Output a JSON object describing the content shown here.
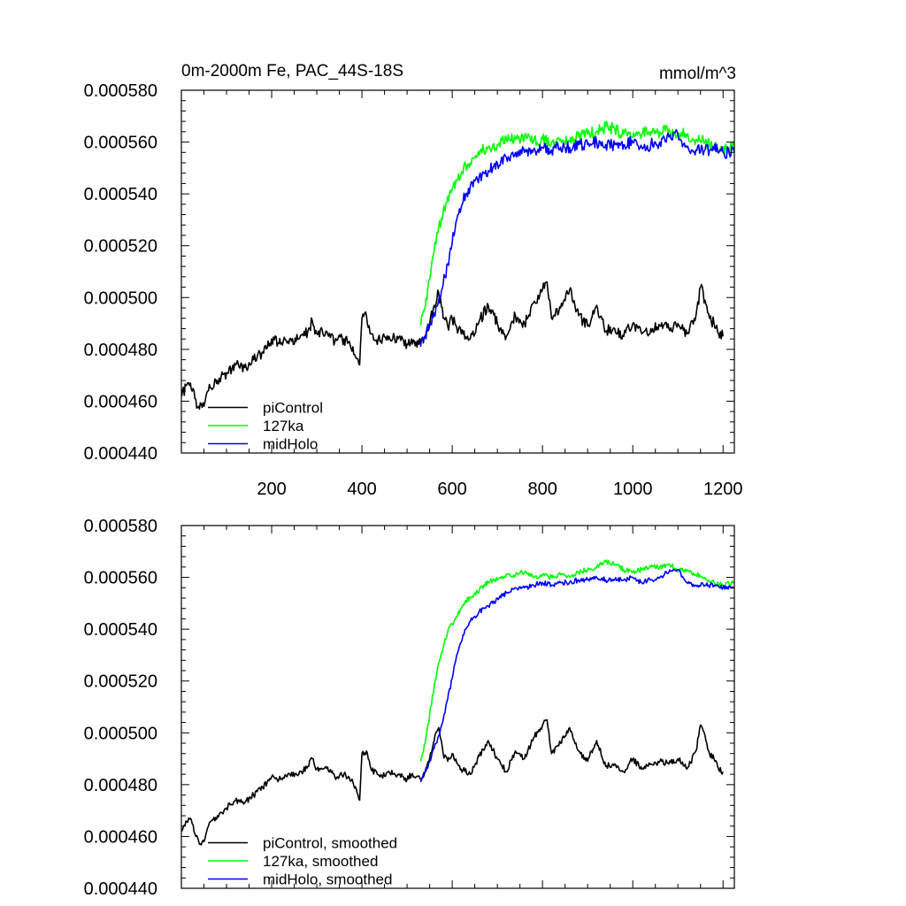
{
  "chart_data": [
    {
      "type": "line",
      "title": "0m-2000m Fe, PAC_44S-18S",
      "units": "mmol/m^3",
      "xlim": [
        0,
        1225
      ],
      "ylim": [
        0.00044,
        0.00058
      ],
      "yticks": [
        0.00044,
        0.00046,
        0.00048,
        0.0005,
        0.00052,
        0.00054,
        0.00056,
        0.00058
      ],
      "ytick_labels": [
        "0.000440",
        "0.000460",
        "0.000480",
        "0.000500",
        "0.000520",
        "0.000540",
        "0.000560",
        "0.000580"
      ],
      "xticks": [
        200,
        400,
        600,
        800,
        1000,
        1200
      ],
      "xtick_labels": [
        "200",
        "400",
        "600",
        "800",
        "1000",
        "1200"
      ],
      "legend_position": "bottom-left",
      "noise": [
        2.2e-06,
        2.4e-06,
        2.4e-06
      ],
      "series": [
        {
          "name": "piControl",
          "color": "#000000",
          "x": [
            1,
            10,
            20,
            30,
            40,
            50,
            60,
            80,
            100,
            120,
            140,
            160,
            180,
            200,
            220,
            240,
            260,
            280,
            290,
            300,
            320,
            340,
            360,
            380,
            395,
            400,
            410,
            420,
            440,
            460,
            480,
            500,
            510,
            520,
            530,
            540,
            550,
            560,
            570,
            580,
            590,
            600,
            620,
            640,
            660,
            680,
            700,
            720,
            740,
            760,
            780,
            800,
            810,
            820,
            840,
            860,
            880,
            900,
            920,
            940,
            960,
            980,
            1000,
            1020,
            1040,
            1060,
            1080,
            1100,
            1120,
            1140,
            1150,
            1160,
            1170,
            1180,
            1190,
            1200
          ],
          "values": [
            0.000462,
            0.000466,
            0.000467,
            0.000461,
            0.000457,
            0.000458,
            0.000464,
            0.000468,
            0.000471,
            0.000474,
            0.000473,
            0.000476,
            0.000479,
            0.000484,
            0.000482,
            0.000484,
            0.000484,
            0.000487,
            0.000491,
            0.000486,
            0.000487,
            0.000483,
            0.000484,
            0.000481,
            0.000474,
            0.000492,
            0.000493,
            0.000486,
            0.000483,
            0.000485,
            0.000484,
            0.000482,
            0.000484,
            0.000483,
            0.000482,
            0.000485,
            0.00049,
            0.000497,
            0.000502,
            0.000492,
            0.000489,
            0.000492,
            0.000486,
            0.000484,
            0.000491,
            0.000497,
            0.00049,
            0.000485,
            0.000493,
            0.00049,
            0.000498,
            0.000503,
            0.000506,
            0.000492,
            0.000496,
            0.000503,
            0.000493,
            0.000489,
            0.000497,
            0.000487,
            0.000488,
            0.000485,
            0.00049,
            0.000486,
            0.000488,
            0.000489,
            0.000488,
            0.00049,
            0.000486,
            0.000493,
            0.000504,
            0.000499,
            0.000492,
            0.00049,
            0.000486,
            0.000485
          ]
        },
        {
          "name": "127ka",
          "color": "#00ff00",
          "x": [
            530,
            540,
            550,
            560,
            570,
            580,
            590,
            600,
            610,
            620,
            630,
            640,
            650,
            660,
            670,
            680,
            690,
            700,
            720,
            740,
            760,
            780,
            800,
            820,
            840,
            860,
            880,
            900,
            920,
            940,
            960,
            980,
            1000,
            1020,
            1040,
            1060,
            1080,
            1100,
            1120,
            1140,
            1160,
            1180,
            1200,
            1225
          ],
          "values": [
            0.000489,
            0.000496,
            0.000507,
            0.000518,
            0.000527,
            0.000533,
            0.000539,
            0.000542,
            0.000545,
            0.000548,
            0.000551,
            0.000552,
            0.000554,
            0.000555,
            0.000557,
            0.000558,
            0.000559,
            0.000559,
            0.000561,
            0.000561,
            0.000562,
            0.00056,
            0.000561,
            0.00056,
            0.000561,
            0.00056,
            0.000562,
            0.000563,
            0.000564,
            0.000566,
            0.000565,
            0.000563,
            0.000562,
            0.000563,
            0.000564,
            0.000564,
            0.000565,
            0.000563,
            0.000563,
            0.000561,
            0.00056,
            0.000558,
            0.000557,
            0.000558
          ]
        },
        {
          "name": "midHolo",
          "color": "#0000ff",
          "x": [
            530,
            540,
            550,
            560,
            570,
            580,
            590,
            600,
            610,
            620,
            630,
            640,
            650,
            660,
            670,
            680,
            690,
            700,
            720,
            740,
            760,
            780,
            800,
            820,
            840,
            860,
            880,
            900,
            920,
            940,
            960,
            980,
            1000,
            1020,
            1040,
            1060,
            1080,
            1100,
            1120,
            1140,
            1160,
            1180,
            1200,
            1225
          ],
          "values": [
            0.000481,
            0.000485,
            0.000489,
            0.000494,
            0.000499,
            0.000505,
            0.000513,
            0.000521,
            0.00053,
            0.000535,
            0.00054,
            0.000543,
            0.000545,
            0.000547,
            0.000548,
            0.000549,
            0.00055,
            0.000552,
            0.000554,
            0.000556,
            0.000556,
            0.000557,
            0.000558,
            0.000557,
            0.000558,
            0.000558,
            0.000559,
            0.000559,
            0.00056,
            0.000559,
            0.000559,
            0.000559,
            0.00056,
            0.000558,
            0.000559,
            0.00056,
            0.000562,
            0.000563,
            0.000558,
            0.000557,
            0.000557,
            0.000557,
            0.000556,
            0.000556
          ]
        }
      ]
    },
    {
      "type": "line",
      "title": "",
      "xlim": [
        0,
        1225
      ],
      "ylim": [
        0.00044,
        0.00058
      ],
      "yticks": [
        0.00044,
        0.00046,
        0.00048,
        0.0005,
        0.00052,
        0.00054,
        0.00056,
        0.00058
      ],
      "ytick_labels": [
        "0.000440",
        "0.000460",
        "0.000480",
        "0.000500",
        "0.000520",
        "0.000540",
        "0.000560",
        "0.000580"
      ],
      "xticks": [
        200,
        400,
        600,
        800,
        1000,
        1200
      ],
      "xtick_labels": [],
      "legend_position": "bottom-left",
      "noise": [
        1.2e-06,
        1e-06,
        1e-06
      ],
      "series": [
        {
          "name": "piControl, smoothed",
          "color": "#000000",
          "x": [
            1,
            10,
            20,
            30,
            40,
            50,
            60,
            80,
            100,
            120,
            140,
            160,
            180,
            200,
            220,
            240,
            260,
            280,
            290,
            300,
            320,
            340,
            360,
            380,
            395,
            400,
            410,
            420,
            440,
            460,
            480,
            500,
            510,
            520,
            530,
            540,
            550,
            560,
            570,
            580,
            590,
            600,
            620,
            640,
            660,
            680,
            700,
            720,
            740,
            760,
            780,
            800,
            810,
            820,
            840,
            860,
            880,
            900,
            920,
            940,
            960,
            980,
            1000,
            1020,
            1040,
            1060,
            1080,
            1100,
            1120,
            1140,
            1150,
            1160,
            1170,
            1180,
            1190,
            1200
          ],
          "values": [
            0.000462,
            0.000466,
            0.000467,
            0.000461,
            0.000457,
            0.000458,
            0.000464,
            0.000468,
            0.000471,
            0.000474,
            0.000473,
            0.000476,
            0.000479,
            0.000483,
            0.000482,
            0.000484,
            0.000484,
            0.000487,
            0.00049,
            0.000486,
            0.000487,
            0.000483,
            0.000484,
            0.000481,
            0.000474,
            0.000492,
            0.000493,
            0.000486,
            0.000483,
            0.000485,
            0.000484,
            0.000482,
            0.000484,
            0.000483,
            0.000482,
            0.000485,
            0.00049,
            0.000497,
            0.000502,
            0.000492,
            0.000489,
            0.000492,
            0.000486,
            0.000484,
            0.000491,
            0.000497,
            0.00049,
            0.000485,
            0.000493,
            0.00049,
            0.000498,
            0.000503,
            0.000505,
            0.000492,
            0.000496,
            0.000502,
            0.000493,
            0.000489,
            0.000497,
            0.000487,
            0.000488,
            0.000485,
            0.00049,
            0.000486,
            0.000488,
            0.000489,
            0.000488,
            0.00049,
            0.000486,
            0.000493,
            0.000503,
            0.000499,
            0.000492,
            0.00049,
            0.000486,
            0.000485
          ]
        },
        {
          "name": "127ka, smoothed",
          "color": "#00ff00",
          "x": [
            530,
            540,
            550,
            560,
            570,
            580,
            590,
            600,
            610,
            620,
            630,
            640,
            650,
            660,
            670,
            680,
            690,
            700,
            720,
            740,
            760,
            780,
            800,
            820,
            840,
            860,
            880,
            900,
            920,
            940,
            960,
            980,
            1000,
            1020,
            1040,
            1060,
            1080,
            1100,
            1120,
            1140,
            1160,
            1180,
            1200,
            1225
          ],
          "values": [
            0.000489,
            0.000496,
            0.000507,
            0.000518,
            0.000527,
            0.000533,
            0.000539,
            0.000542,
            0.000545,
            0.000548,
            0.000551,
            0.000552,
            0.000554,
            0.000555,
            0.000557,
            0.000558,
            0.000559,
            0.000559,
            0.000561,
            0.000561,
            0.000562,
            0.00056,
            0.000561,
            0.00056,
            0.000561,
            0.00056,
            0.000562,
            0.000563,
            0.000564,
            0.000566,
            0.000565,
            0.000563,
            0.000562,
            0.000563,
            0.000564,
            0.000564,
            0.000565,
            0.000563,
            0.000563,
            0.000561,
            0.00056,
            0.000558,
            0.000557,
            0.000558
          ]
        },
        {
          "name": "midHolo, smoothed",
          "color": "#0000ff",
          "x": [
            530,
            540,
            550,
            560,
            570,
            580,
            590,
            600,
            610,
            620,
            630,
            640,
            650,
            660,
            670,
            680,
            690,
            700,
            720,
            740,
            760,
            780,
            800,
            820,
            840,
            860,
            880,
            900,
            920,
            940,
            960,
            980,
            1000,
            1020,
            1040,
            1060,
            1080,
            1100,
            1120,
            1140,
            1160,
            1180,
            1200,
            1225
          ],
          "values": [
            0.000481,
            0.000485,
            0.000489,
            0.000494,
            0.000499,
            0.000505,
            0.000513,
            0.000521,
            0.00053,
            0.000535,
            0.00054,
            0.000543,
            0.000545,
            0.000547,
            0.000548,
            0.000549,
            0.00055,
            0.000552,
            0.000554,
            0.000556,
            0.000556,
            0.000557,
            0.000558,
            0.000557,
            0.000558,
            0.000558,
            0.000559,
            0.000559,
            0.00056,
            0.000559,
            0.000559,
            0.000559,
            0.00056,
            0.000558,
            0.000559,
            0.00056,
            0.000562,
            0.000563,
            0.000558,
            0.000557,
            0.000557,
            0.000557,
            0.000556,
            0.000556
          ]
        }
      ]
    }
  ]
}
